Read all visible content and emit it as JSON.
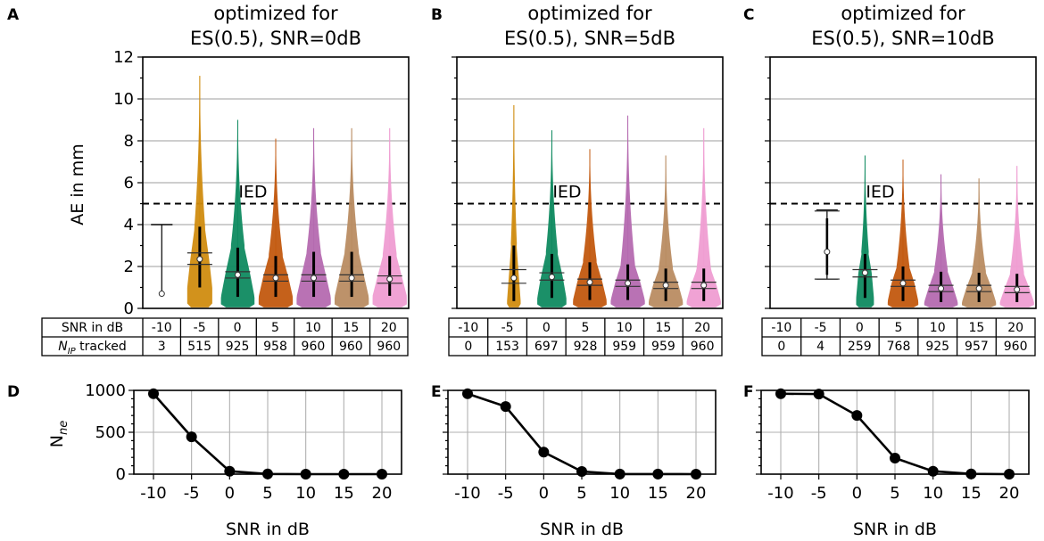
{
  "figure": {
    "ylabel_top": "AE in mm",
    "ylabel_bottom_main": "N",
    "ylabel_bottom_sub": "ne",
    "xlabel_bottom": "SNR in dB",
    "table_row1_label": "SNR in dB",
    "table_row2_label_main": "N",
    "table_row2_label_sub": "IP",
    "table_row2_label_rest": " tracked",
    "ied_label": "IED",
    "ied_value": 5,
    "colors": [
      "#d08c10",
      "#0f8a60",
      "#c2590f",
      "#b56ab0",
      "#b98c62",
      "#ef9dd2"
    ]
  },
  "chart_data": [
    {
      "type": "violin",
      "panel": "A",
      "title_line1": "optimized for",
      "title_line2": "ES(0.5), SNR=0dB",
      "categories": [
        "-10",
        "-5",
        "0",
        "5",
        "10",
        "15",
        "20"
      ],
      "ylim": [
        0,
        12
      ],
      "yticks": [
        "0",
        "2",
        "4",
        "6",
        "8",
        "10",
        "12"
      ],
      "ylabel": "AE in mm",
      "n_tracked": [
        "3",
        "515",
        "925",
        "958",
        "960",
        "960",
        "960"
      ],
      "median": [
        0.7,
        2.35,
        1.6,
        1.45,
        1.45,
        1.45,
        1.4
      ],
      "q1": [
        0.7,
        1.0,
        0.55,
        0.55,
        0.55,
        0.55,
        0.6
      ],
      "q3": [
        2.3,
        3.9,
        2.9,
        2.5,
        2.7,
        2.7,
        2.5
      ],
      "max": [
        4.0,
        11.1,
        9.0,
        8.1,
        8.6,
        8.6,
        8.6
      ],
      "ci_low": [
        null,
        2.1,
        1.45,
        1.3,
        1.3,
        1.3,
        1.2
      ],
      "ci_high": [
        null,
        2.65,
        1.75,
        1.6,
        1.6,
        1.6,
        1.55
      ]
    },
    {
      "type": "violin",
      "panel": "B",
      "title_line1": "optimized for",
      "title_line2": "ES(0.5), SNR=5dB",
      "categories": [
        "-10",
        "-5",
        "0",
        "5",
        "10",
        "15",
        "20"
      ],
      "ylim": [
        0,
        12
      ],
      "n_tracked": [
        "0",
        "153",
        "697",
        "928",
        "959",
        "959",
        "960"
      ],
      "median": [
        null,
        1.45,
        1.5,
        1.25,
        1.2,
        1.1,
        1.1
      ],
      "q1": [
        null,
        0.35,
        0.5,
        0.4,
        0.4,
        0.35,
        0.35
      ],
      "q3": [
        null,
        3.0,
        2.6,
        2.2,
        2.1,
        1.9,
        1.9
      ],
      "max": [
        null,
        9.7,
        8.5,
        7.6,
        9.2,
        7.3,
        8.6
      ],
      "ci_low": [
        null,
        1.2,
        1.35,
        1.1,
        1.05,
        0.95,
        0.95
      ],
      "ci_high": [
        null,
        1.85,
        1.7,
        1.4,
        1.35,
        1.25,
        1.25
      ]
    },
    {
      "type": "violin",
      "panel": "C",
      "title_line1": "optimized for",
      "title_line2": "ES(0.5), SNR=10dB",
      "categories": [
        "-10",
        "-5",
        "0",
        "5",
        "10",
        "15",
        "20"
      ],
      "ylim": [
        0,
        12
      ],
      "n_tracked": [
        "0",
        "4",
        "259",
        "768",
        "925",
        "957",
        "960"
      ],
      "median": [
        null,
        2.7,
        1.7,
        1.2,
        0.95,
        0.95,
        0.9
      ],
      "q1": [
        null,
        1.4,
        0.5,
        0.35,
        0.3,
        0.3,
        0.3
      ],
      "q3": [
        null,
        4.6,
        2.6,
        2.0,
        1.75,
        1.7,
        1.65
      ],
      "max": [
        null,
        4.7,
        7.3,
        7.1,
        6.4,
        6.2,
        6.8
      ],
      "ci_low": [
        null,
        1.4,
        1.5,
        1.05,
        0.8,
        0.8,
        0.75
      ],
      "ci_high": [
        null,
        4.65,
        1.85,
        1.35,
        1.1,
        1.1,
        1.05
      ]
    },
    {
      "type": "line",
      "panel": "D",
      "x": [
        -10,
        -5,
        0,
        5,
        10,
        15,
        20
      ],
      "y": [
        960,
        445,
        35,
        2,
        0,
        0,
        0
      ],
      "xlabel": "SNR in dB",
      "ylim": [
        0,
        1000
      ],
      "yticks": [
        "0",
        "500",
        "1000"
      ],
      "xticks": [
        "-10",
        "-5",
        "0",
        "5",
        "10",
        "15",
        "20"
      ]
    },
    {
      "type": "line",
      "panel": "E",
      "x": [
        -10,
        -5,
        0,
        5,
        10,
        15,
        20
      ],
      "y": [
        960,
        807,
        263,
        32,
        1,
        1,
        0
      ],
      "xlabel": "SNR in dB",
      "ylim": [
        0,
        1000
      ],
      "xticks": [
        "-10",
        "-5",
        "0",
        "5",
        "10",
        "15",
        "20"
      ]
    },
    {
      "type": "line",
      "panel": "F",
      "x": [
        -10,
        -5,
        0,
        5,
        10,
        15,
        20
      ],
      "y": [
        960,
        956,
        701,
        192,
        35,
        3,
        0
      ],
      "xlabel": "SNR in dB",
      "ylim": [
        0,
        1000
      ],
      "xticks": [
        "-10",
        "-5",
        "0",
        "5",
        "10",
        "15",
        "20"
      ]
    }
  ]
}
